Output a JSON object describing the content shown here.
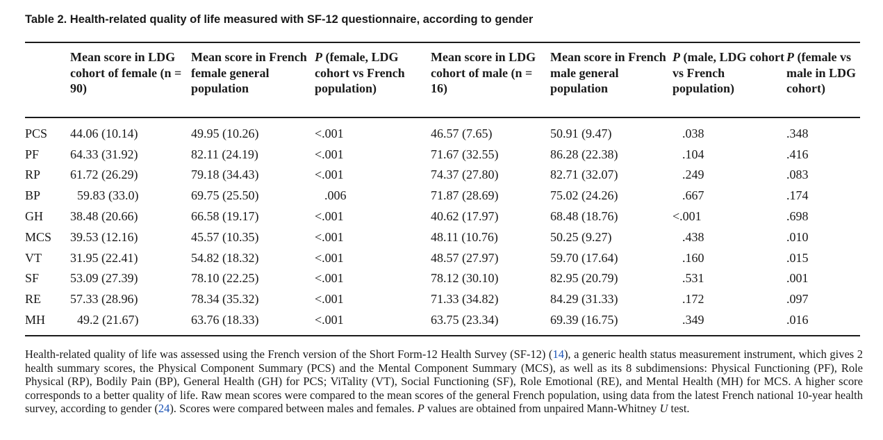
{
  "title": "Table 2.  Health-related quality of life measured with SF-12 questionnaire, according to gender",
  "columns": [
    {
      "pre": "",
      "italic": "",
      "post": ""
    },
    {
      "pre": "",
      "italic": "",
      "post": "Mean score in LDG cohort of female (n = 90)"
    },
    {
      "pre": "",
      "italic": "",
      "post": "Mean score in French female general population"
    },
    {
      "pre": "",
      "italic": "P",
      "post": " (female, LDG cohort vs French population)"
    },
    {
      "pre": "",
      "italic": "",
      "post": "Mean score in LDG cohort of male (n = 16)"
    },
    {
      "pre": "",
      "italic": "",
      "post": "Mean score in French male general population"
    },
    {
      "pre": "",
      "italic": "P",
      "post": " (male, LDG cohort vs French population)"
    },
    {
      "pre": "",
      "italic": "P",
      "post": " (female vs male in LDG cohort)"
    }
  ],
  "rows": [
    [
      "PCS",
      "44.06 (10.14)",
      "49.95 (10.26)",
      "<.001",
      "46.57 (7.65)",
      "50.91 (9.47)",
      ".038",
      ".348"
    ],
    [
      "PF",
      "64.33 (31.92)",
      "82.11 (24.19)",
      "<.001",
      "71.67 (32.55)",
      "86.28 (22.38)",
      ".104",
      ".416"
    ],
    [
      "RP",
      "61.72 (26.29)",
      "79.18 (34.43)",
      "<.001",
      "74.37 (27.80)",
      "82.71 (32.07)",
      ".249",
      ".083"
    ],
    [
      "BP",
      "59.83 (33.0)",
      "69.75 (25.50)",
      ".006",
      "71.87 (28.69)",
      "75.02 (24.26)",
      ".667",
      ".174"
    ],
    [
      "GH",
      "38.48 (20.66)",
      "66.58 (19.17)",
      "<.001",
      "40.62 (17.97)",
      "68.48 (18.76)",
      "<.001",
      ".698"
    ],
    [
      "MCS",
      "39.53 (12.16)",
      "45.57 (10.35)",
      "<.001",
      "48.11 (10.76)",
      "50.25 (9.27)",
      ".438",
      ".010"
    ],
    [
      "VT",
      "31.95 (22.41)",
      "54.82 (18.32)",
      "<.001",
      "48.57 (27.97)",
      "59.70 (17.64)",
      ".160",
      ".015"
    ],
    [
      "SF",
      "53.09 (27.39)",
      "78.10 (22.25)",
      "<.001",
      "78.12 (30.10)",
      "82.95 (20.79)",
      ".531",
      ".001"
    ],
    [
      "RE",
      "57.33 (28.96)",
      "78.34 (35.32)",
      "<.001",
      "71.33 (34.82)",
      "84.29 (31.33)",
      ".172",
      ".097"
    ],
    [
      "MH",
      "49.2 (21.67)",
      "63.76 (18.33)",
      "<.001",
      "63.75 (23.34)",
      "69.39 (16.75)",
      ".349",
      ".016"
    ]
  ],
  "footnote": {
    "part1": "Health-related quality of life was assessed using the French version of the Short Form-12 Health Survey (SF-12) (",
    "ref1": "14",
    "part2": "), a generic health status measurement instrument, which gives 2 health summary scores, the Physical Component Summary (PCS) and the Mental Component Summary (MCS), as well as its 8 subdimensions: Physical Functioning (PF), Role Physical (RP), Bodily Pain (BP), General Health (GH) for PCS; ViTality (VT), Social Functioning (SF), Role Emotional (RE), and Mental Health (MH) for MCS. A higher score corresponds to a better quality of life. Raw mean scores were compared to the mean scores of the general French population, using data from the latest French national 10-year health survey, according to gender (",
    "ref2": "24",
    "part3": "). Scores were compared between males and females. ",
    "italic_p": "P",
    "part4": " values are obtained from unpaired Mann-Whitney ",
    "italic_u": "U",
    "part5": " test."
  },
  "colors": {
    "text": "#1a1a1a",
    "link": "#1a52b5"
  }
}
